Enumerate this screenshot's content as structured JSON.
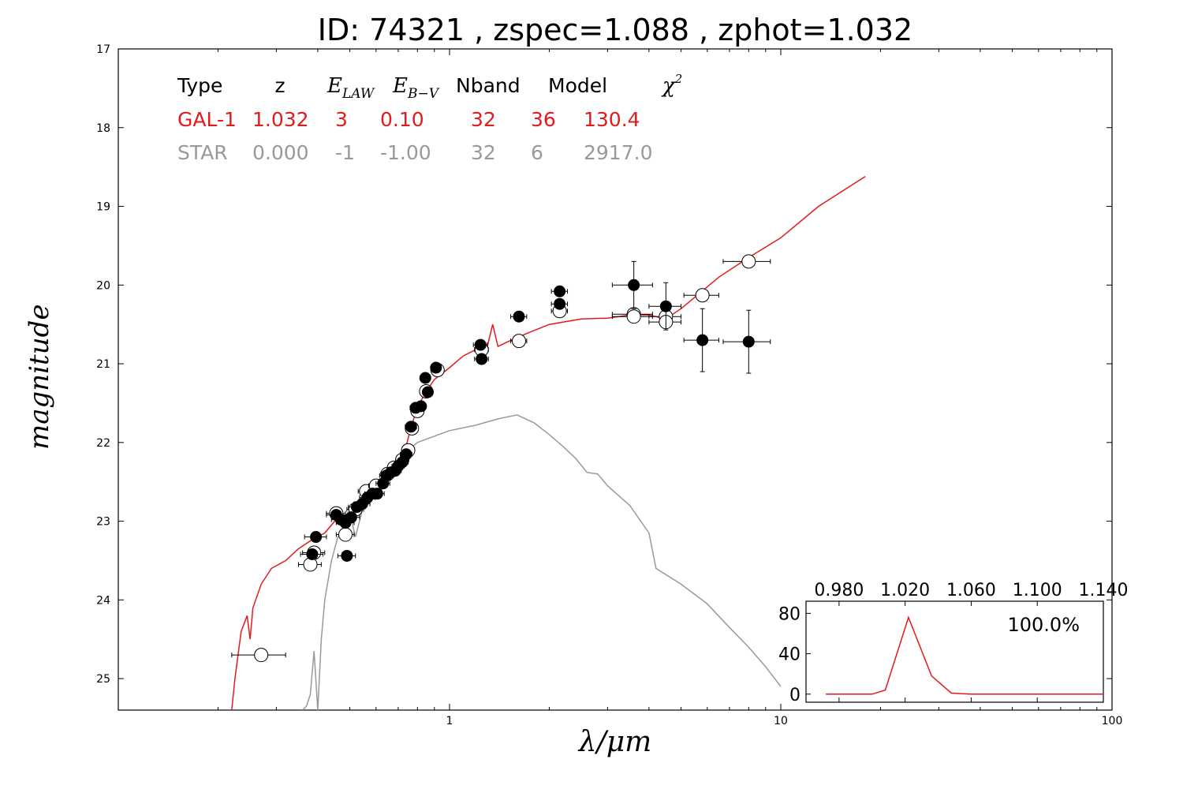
{
  "header": {
    "title": "ID:  74321 , zspec=1.088 , zphot=1.032"
  },
  "chart_data": {
    "type": "scatter",
    "title": "ID:  74321 , zspec=1.088 , zphot=1.032",
    "xlabel": "λ/μm",
    "ylabel": "magnitude",
    "xscale": "log",
    "xlim": [
      0.1,
      100
    ],
    "ylim": [
      25.4,
      17
    ],
    "x_ticks": [
      1,
      10,
      100
    ],
    "x_tick_labels": [
      "1",
      "10",
      "100"
    ],
    "y_ticks": [
      17,
      18,
      19,
      20,
      21,
      22,
      23,
      24,
      25
    ],
    "y_tick_labels": [
      "17",
      "18",
      "19",
      "20",
      "21",
      "22",
      "23",
      "24",
      "25"
    ],
    "legend": {
      "headers": [
        "Type",
        "z",
        "E_LAW",
        "E_B-V",
        "Nband",
        "Model",
        "χ²"
      ],
      "rows": [
        {
          "name": "GAL-1",
          "color": "#e31a1c",
          "values": [
            "GAL-1",
            "1.032",
            "3",
            "0.10",
            "32",
            "36",
            "130.4"
          ]
        },
        {
          "name": "STAR",
          "color": "#999999",
          "values": [
            "STAR",
            "0.000",
            "-1",
            "-1.00",
            "32",
            "6",
            "2917.0"
          ]
        }
      ]
    },
    "series": [
      {
        "name": "GAL-1",
        "kind": "model",
        "color": "#e31a1c",
        "points": [
          [
            0.22,
            25.4
          ],
          [
            0.225,
            25.0
          ],
          [
            0.235,
            24.4
          ],
          [
            0.245,
            24.2
          ],
          [
            0.25,
            24.5
          ],
          [
            0.255,
            24.1
          ],
          [
            0.27,
            23.8
          ],
          [
            0.29,
            23.6
          ],
          [
            0.32,
            23.5
          ],
          [
            0.35,
            23.35
          ],
          [
            0.38,
            23.25
          ],
          [
            0.42,
            23.15
          ],
          [
            0.45,
            23.0
          ],
          [
            0.48,
            22.95
          ],
          [
            0.5,
            22.9
          ],
          [
            0.55,
            22.75
          ],
          [
            0.6,
            22.55
          ],
          [
            0.65,
            22.45
          ],
          [
            0.7,
            22.3
          ],
          [
            0.73,
            22.15
          ],
          [
            0.76,
            21.85
          ],
          [
            0.8,
            21.55
          ],
          [
            0.85,
            21.35
          ],
          [
            0.9,
            21.2
          ],
          [
            1.0,
            21.05
          ],
          [
            1.1,
            20.9
          ],
          [
            1.2,
            20.82
          ],
          [
            1.3,
            20.78
          ],
          [
            1.35,
            20.5
          ],
          [
            1.4,
            20.78
          ],
          [
            1.5,
            20.72
          ],
          [
            1.7,
            20.62
          ],
          [
            2.0,
            20.5
          ],
          [
            2.5,
            20.43
          ],
          [
            3.0,
            20.42
          ],
          [
            3.5,
            20.38
          ],
          [
            4.0,
            20.38
          ],
          [
            4.5,
            20.43
          ],
          [
            5.0,
            20.3
          ],
          [
            5.7,
            20.1
          ],
          [
            6.5,
            19.9
          ],
          [
            8.0,
            19.65
          ],
          [
            10.0,
            19.4
          ],
          [
            13.0,
            19.0
          ],
          [
            18.0,
            18.62
          ]
        ]
      },
      {
        "name": "STAR",
        "kind": "model",
        "color": "#999999",
        "points": [
          [
            0.36,
            25.4
          ],
          [
            0.37,
            25.35
          ],
          [
            0.38,
            25.2
          ],
          [
            0.39,
            24.65
          ],
          [
            0.4,
            25.4
          ],
          [
            0.41,
            24.5
          ],
          [
            0.42,
            24.0
          ],
          [
            0.44,
            23.5
          ],
          [
            0.46,
            23.2
          ],
          [
            0.48,
            23.1
          ],
          [
            0.5,
            22.9
          ],
          [
            0.52,
            23.2
          ],
          [
            0.55,
            22.8
          ],
          [
            0.6,
            22.55
          ],
          [
            0.65,
            22.45
          ],
          [
            0.7,
            22.25
          ],
          [
            0.75,
            22.1
          ],
          [
            0.8,
            22.0
          ],
          [
            0.9,
            21.92
          ],
          [
            1.0,
            21.85
          ],
          [
            1.2,
            21.78
          ],
          [
            1.4,
            21.7
          ],
          [
            1.6,
            21.65
          ],
          [
            1.8,
            21.75
          ],
          [
            2.0,
            21.9
          ],
          [
            2.2,
            22.05
          ],
          [
            2.4,
            22.2
          ],
          [
            2.6,
            22.38
          ],
          [
            2.8,
            22.4
          ],
          [
            3.0,
            22.55
          ],
          [
            3.5,
            22.8
          ],
          [
            4.0,
            23.15
          ],
          [
            4.2,
            23.6
          ],
          [
            5.0,
            23.8
          ],
          [
            6.0,
            24.05
          ],
          [
            7.0,
            24.35
          ],
          [
            8.0,
            24.6
          ],
          [
            9.0,
            24.85
          ],
          [
            10.0,
            25.1
          ]
        ]
      },
      {
        "name": "observed",
        "kind": "points",
        "color": "#000000",
        "points": [
          [
            0.385,
            23.42,
            0.03,
            0.02
          ],
          [
            0.395,
            23.2,
            0.03,
            0.02
          ],
          [
            0.455,
            22.92,
            0.03,
            0.02
          ],
          [
            0.47,
            22.98,
            0.03,
            0.02
          ],
          [
            0.485,
            23.02,
            0.03,
            0.02
          ],
          [
            0.49,
            23.44,
            0.03,
            0.04
          ],
          [
            0.505,
            22.95,
            0.03,
            0.02
          ],
          [
            0.525,
            22.82,
            0.03,
            0.02
          ],
          [
            0.545,
            22.78,
            0.03,
            0.02
          ],
          [
            0.565,
            22.7,
            0.03,
            0.02
          ],
          [
            0.585,
            22.65,
            0.03,
            0.02
          ],
          [
            0.605,
            22.65,
            0.03,
            0.02
          ],
          [
            0.63,
            22.52,
            0.03,
            0.02
          ],
          [
            0.645,
            22.42,
            0.03,
            0.02
          ],
          [
            0.665,
            22.38,
            0.03,
            0.02
          ],
          [
            0.685,
            22.36,
            0.03,
            0.02
          ],
          [
            0.7,
            22.3,
            0.03,
            0.02
          ],
          [
            0.72,
            22.25,
            0.03,
            0.02
          ],
          [
            0.74,
            22.15,
            0.03,
            0.02
          ],
          [
            0.765,
            21.8,
            0.03,
            0.02
          ],
          [
            0.79,
            21.56,
            0.03,
            0.02
          ],
          [
            0.82,
            21.54,
            0.03,
            0.02
          ],
          [
            0.845,
            21.18,
            0.03,
            0.02
          ],
          [
            0.86,
            21.36,
            0.03,
            0.02
          ],
          [
            0.91,
            21.05,
            0.03,
            0.02
          ],
          [
            1.24,
            20.76,
            0.06,
            0.04
          ],
          [
            1.25,
            20.94,
            0.06,
            0.04
          ],
          [
            1.62,
            20.4,
            0.09,
            0.05
          ],
          [
            2.15,
            20.08,
            0.12,
            0.05
          ],
          [
            2.15,
            20.24,
            0.12,
            0.05
          ],
          [
            3.6,
            20.0,
            0.5,
            0.3
          ],
          [
            4.5,
            20.27,
            0.5,
            0.3
          ],
          [
            5.8,
            20.7,
            0.7,
            0.4
          ],
          [
            8.0,
            20.72,
            1.3,
            0.4
          ]
        ]
      },
      {
        "name": "predicted",
        "kind": "open-points",
        "color": "#000000",
        "points": [
          [
            0.27,
            24.7,
            0.05,
            0
          ],
          [
            0.38,
            23.55,
            0.03,
            0
          ],
          [
            0.39,
            23.4,
            0.03,
            0
          ],
          [
            0.455,
            22.9,
            0.03,
            0
          ],
          [
            0.485,
            23.17,
            0.03,
            0
          ],
          [
            0.52,
            22.85,
            0.03,
            0
          ],
          [
            0.56,
            22.62,
            0.03,
            0
          ],
          [
            0.6,
            22.55,
            0.03,
            0
          ],
          [
            0.65,
            22.4,
            0.03,
            0
          ],
          [
            0.68,
            22.32,
            0.03,
            0
          ],
          [
            0.72,
            22.22,
            0.03,
            0
          ],
          [
            0.75,
            22.1,
            0.03,
            0
          ],
          [
            0.77,
            21.82,
            0.03,
            0
          ],
          [
            0.8,
            21.6,
            0.03,
            0
          ],
          [
            0.85,
            21.35,
            0.03,
            0
          ],
          [
            0.92,
            21.08,
            0.03,
            0
          ],
          [
            1.25,
            20.82,
            0.06,
            0
          ],
          [
            1.62,
            20.71,
            0.09,
            0
          ],
          [
            2.15,
            20.33,
            0.12,
            0
          ],
          [
            3.6,
            20.37,
            0.5,
            0
          ],
          [
            3.6,
            20.4,
            0.5,
            0
          ],
          [
            4.5,
            20.4,
            0.5,
            0
          ],
          [
            4.5,
            20.47,
            0.5,
            0
          ],
          [
            5.8,
            20.13,
            0.7,
            0
          ],
          [
            8.0,
            19.7,
            1.3,
            0
          ]
        ]
      }
    ],
    "inset": {
      "type": "line",
      "x_tick_labels": [
        "0.980",
        "1.020",
        "1.060",
        "1.100",
        "1.140"
      ],
      "x_ticks": [
        0.98,
        1.02,
        1.06,
        1.1,
        1.14
      ],
      "xlim": [
        0.96,
        1.14
      ],
      "y_tick_labels": [
        "80",
        "40",
        "0"
      ],
      "y_ticks": [
        80,
        40,
        0
      ],
      "ylim": [
        -8,
        92
      ],
      "annotation": "100.0%",
      "color": "#e31a1c",
      "x": [
        0.972,
        0.99,
        1.0,
        1.008,
        1.022,
        1.036,
        1.048,
        1.06,
        1.14
      ],
      "y": [
        0,
        0,
        0,
        4,
        76,
        18,
        1,
        0,
        0
      ]
    }
  }
}
